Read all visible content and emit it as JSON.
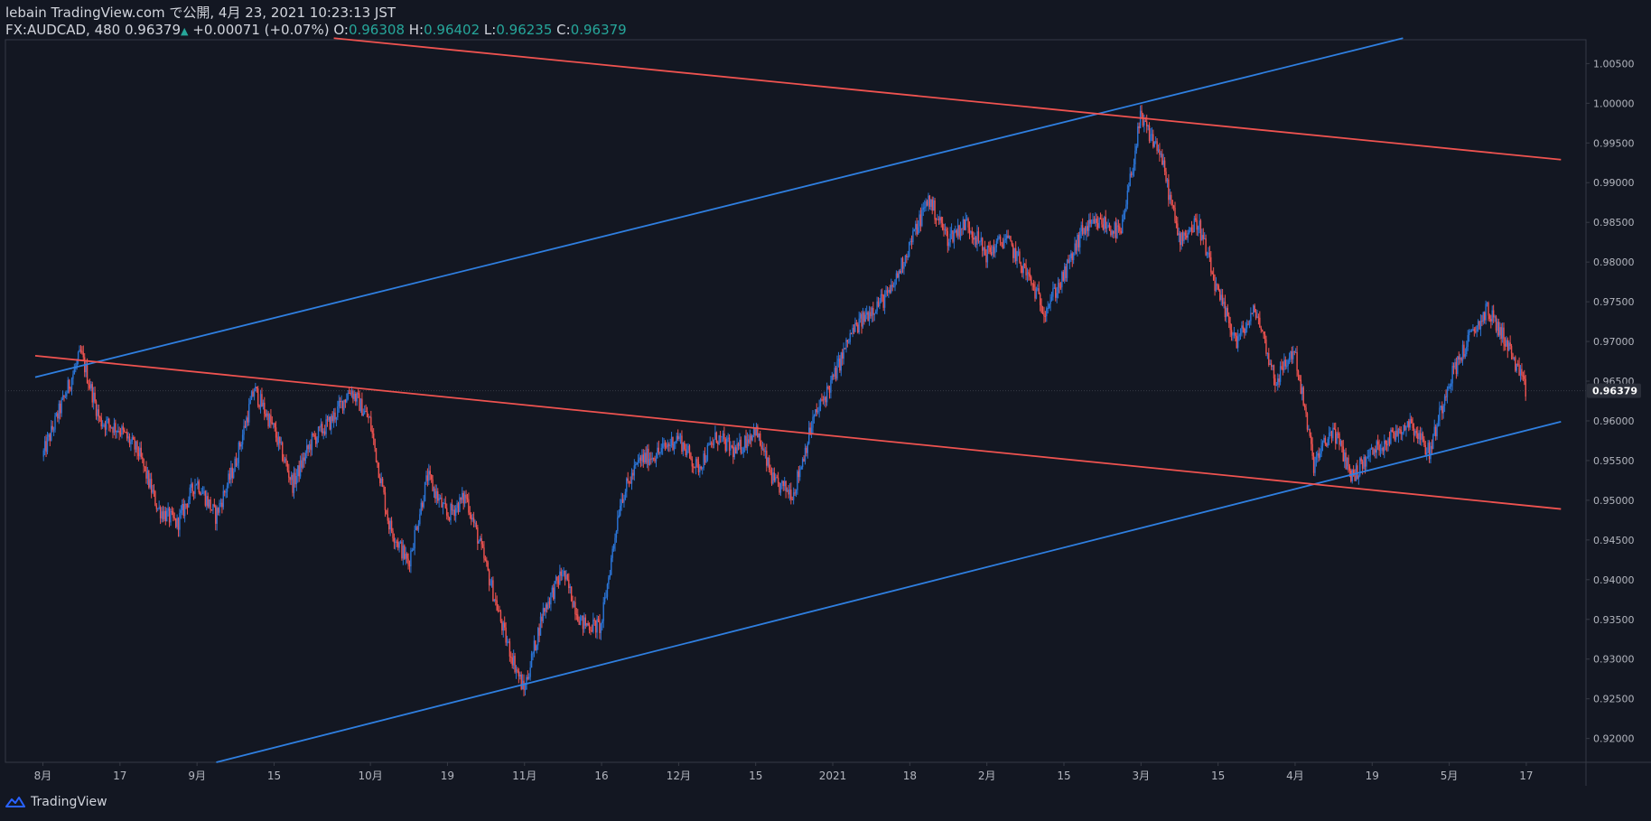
{
  "header": {
    "publish_line": "lebain TradingView.com で公開, 4月 23, 2021 10:23:13 JST",
    "symbol": "FX:AUDCAD, 480",
    "last": "0.96379",
    "arrow": "▲",
    "change": "+0.00071 (+0.07%)",
    "o_label": "O:",
    "o_value": "0.96308",
    "h_label": "H:",
    "h_value": "0.96402",
    "l_label": "L:",
    "l_value": "0.96235",
    "c_label": "C:",
    "c_value": "0.96379"
  },
  "footer": {
    "brand": "TradingView"
  },
  "colors": {
    "background": "#131722",
    "up": "#2a74d6",
    "down": "#ef5350",
    "trend_blue": "#2f7fe0",
    "trend_red": "#ef5350",
    "axis_text": "#b2b5be",
    "price_tag_bg": "#2a2e39"
  },
  "chart_data": {
    "type": "candlestick",
    "symbol": "FX:AUDCAD",
    "interval": "480",
    "price_axis_ticks": [
      "1.00500",
      "1.00000",
      "0.99500",
      "0.99000",
      "0.98500",
      "0.98000",
      "0.97500",
      "0.97000",
      "0.96500",
      "0.96000",
      "0.95500",
      "0.95000",
      "0.94500",
      "0.94000",
      "0.93500",
      "0.93000",
      "0.92500",
      "0.92000"
    ],
    "ylim": [
      0.917,
      1.008
    ],
    "time_axis_labels": [
      "8月",
      "17",
      "9月",
      "15",
      "10月",
      "19",
      "11月",
      "16",
      "12月",
      "15",
      "2021",
      "18",
      "2月",
      "15",
      "3月",
      "15",
      "4月",
      "19",
      "5月",
      "17"
    ],
    "time_axis_label_index": [
      0,
      4,
      8,
      12,
      17,
      21,
      25,
      29,
      33,
      37,
      41,
      45,
      49,
      53,
      57,
      61,
      65,
      69,
      73,
      77
    ],
    "weeks_visible": 80,
    "last_price": "0.96379",
    "close_path_weekly": [
      0.9555,
      0.962,
      0.9685,
      0.96,
      0.959,
      0.956,
      0.949,
      0.947,
      0.9525,
      0.948,
      0.9545,
      0.964,
      0.959,
      0.952,
      0.9575,
      0.96,
      0.964,
      0.96,
      0.947,
      0.942,
      0.953,
      0.948,
      0.9505,
      0.942,
      0.933,
      0.926,
      0.936,
      0.941,
      0.9345,
      0.934,
      0.95,
      0.955,
      0.956,
      0.958,
      0.954,
      0.958,
      0.956,
      0.959,
      0.952,
      0.951,
      0.96,
      0.965,
      0.971,
      0.974,
      0.976,
      0.982,
      0.988,
      0.983,
      0.985,
      0.981,
      0.983,
      0.979,
      0.974,
      0.978,
      0.984,
      0.985,
      0.9835,
      0.998,
      0.994,
      0.983,
      0.985,
      0.976,
      0.97,
      0.974,
      0.965,
      0.969,
      0.9545,
      0.959,
      0.953,
      0.956,
      0.958,
      0.96,
      0.956,
      0.965,
      0.97,
      0.974,
      0.97,
      0.9638
    ],
    "trendlines": [
      {
        "color": "blue",
        "from": {
          "week": -0.4,
          "price": 0.9655
        },
        "to": {
          "week": 70.6,
          "price": 1.0082
        }
      },
      {
        "color": "blue",
        "from": {
          "week": 9.0,
          "price": 0.917
        },
        "to": {
          "week": 78.8,
          "price": 0.9599
        }
      },
      {
        "color": "red",
        "from": {
          "week": 15.1,
          "price": 1.0082
        },
        "to": {
          "week": 78.8,
          "price": 0.9929
        }
      },
      {
        "color": "red",
        "from": {
          "week": -0.4,
          "price": 0.9682
        },
        "to": {
          "week": 78.8,
          "price": 0.9489
        }
      }
    ]
  }
}
